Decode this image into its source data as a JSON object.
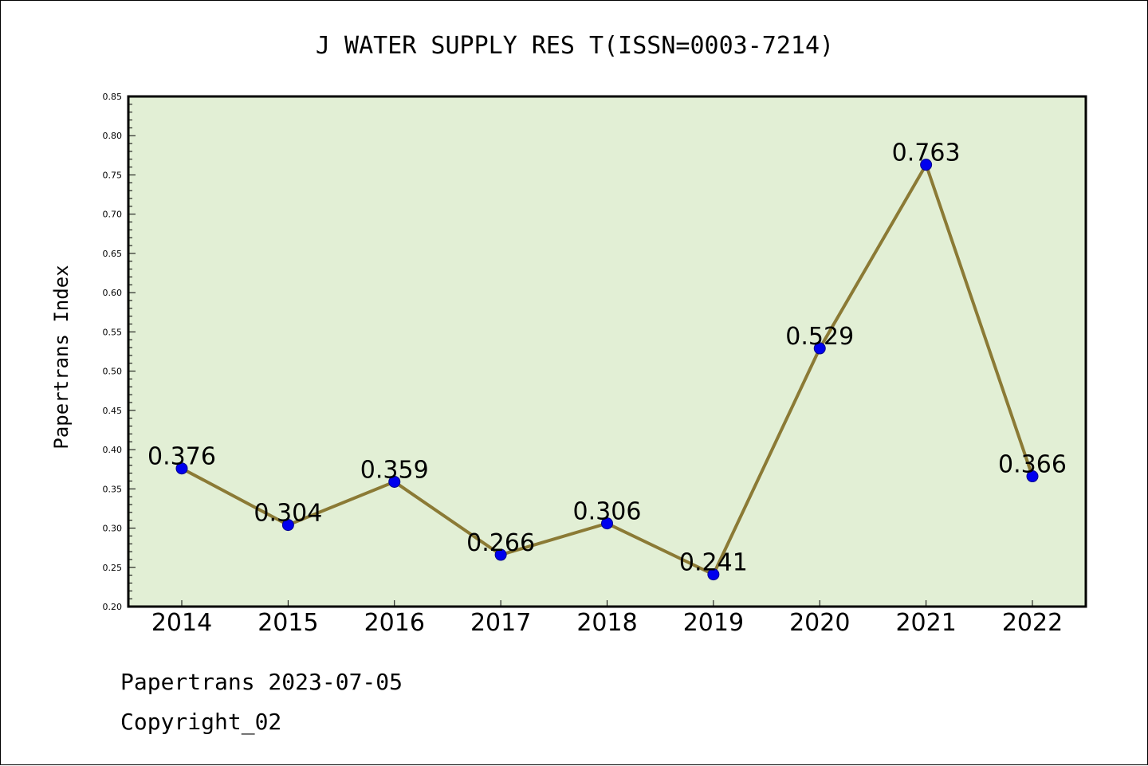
{
  "footer": {
    "line1": "Papertrans 2023-07-05",
    "line2": "Copyright_02"
  },
  "colors": {
    "plot_bg": "#e2efd5",
    "line": "#8b7a35",
    "marker": "#0000ee",
    "axis": "#000000"
  },
  "chart_data": {
    "type": "line",
    "title": "J WATER SUPPLY RES T(ISSN=0003-7214)",
    "xlabel": "",
    "ylabel": "Papertrans Index",
    "categories": [
      "2014",
      "2015",
      "2016",
      "2017",
      "2018",
      "2019",
      "2020",
      "2021",
      "2022"
    ],
    "series": [
      {
        "values": [
          0.376,
          0.304,
          0.359,
          0.266,
          0.306,
          0.241,
          0.529,
          0.763,
          0.366
        ],
        "data_labels": [
          "0.376",
          "0.304",
          "0.359",
          "0.266",
          "0.306",
          "0.241",
          "0.529",
          "0.763",
          "0.366"
        ]
      }
    ],
    "ylim": [
      0.2,
      0.85
    ],
    "yticks": [
      "0.20",
      "0.25",
      "0.30",
      "0.35",
      "0.40",
      "0.45",
      "0.50",
      "0.55",
      "0.60",
      "0.65",
      "0.70",
      "0.75",
      "0.80",
      "0.85"
    ],
    "grid": false,
    "legend": "none"
  }
}
